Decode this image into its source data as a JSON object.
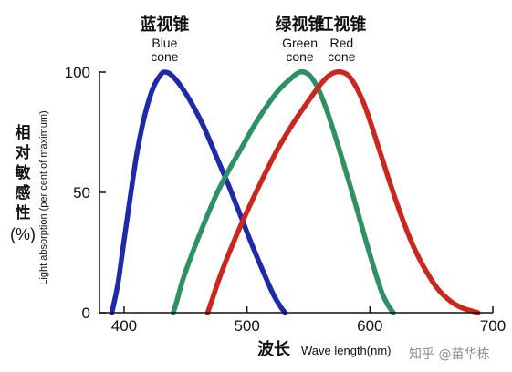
{
  "chart_data": {
    "type": "line",
    "xlabel_cn": "波长",
    "xlabel_en": "Wave length(nm)",
    "ylabel_cn": [
      "相",
      "对",
      "敏",
      "感",
      "性"
    ],
    "ylabel_unit": "(%)",
    "ylabel_en": "Light absorption (per cent of maximum)",
    "xlim": [
      380,
      700
    ],
    "ylim": [
      0,
      100
    ],
    "x_ticks": [
      "400",
      "500",
      "600",
      "700"
    ],
    "y_ticks": [
      "0",
      "50",
      "100"
    ],
    "series": [
      {
        "name_cn": "蓝视锥",
        "name_en": [
          "Blue",
          "cone"
        ],
        "color": "#1e2aa6",
        "peak": 433,
        "points": [
          [
            390,
            0
          ],
          [
            395,
            12
          ],
          [
            400,
            30
          ],
          [
            405,
            48
          ],
          [
            410,
            65
          ],
          [
            415,
            78
          ],
          [
            420,
            88
          ],
          [
            425,
            95
          ],
          [
            430,
            99
          ],
          [
            433,
            100
          ],
          [
            438,
            99
          ],
          [
            445,
            95
          ],
          [
            455,
            87
          ],
          [
            465,
            77
          ],
          [
            475,
            65
          ],
          [
            485,
            53
          ],
          [
            495,
            40
          ],
          [
            505,
            27
          ],
          [
            515,
            15
          ],
          [
            522,
            7
          ],
          [
            528,
            2
          ],
          [
            531,
            0
          ]
        ]
      },
      {
        "name_cn": "绿视锥",
        "name_en": [
          "Green",
          "cone"
        ],
        "color": "#2f9063",
        "peak": 543,
        "points": [
          [
            440,
            0
          ],
          [
            443,
            5
          ],
          [
            448,
            14
          ],
          [
            455,
            24
          ],
          [
            465,
            37
          ],
          [
            475,
            49
          ],
          [
            485,
            59
          ],
          [
            495,
            68
          ],
          [
            505,
            77
          ],
          [
            515,
            85
          ],
          [
            525,
            92
          ],
          [
            535,
            97
          ],
          [
            543,
            100
          ],
          [
            550,
            99
          ],
          [
            557,
            94
          ],
          [
            565,
            84
          ],
          [
            575,
            68
          ],
          [
            585,
            51
          ],
          [
            595,
            33
          ],
          [
            603,
            19
          ],
          [
            610,
            8
          ],
          [
            615,
            3
          ],
          [
            619,
            0
          ]
        ]
      },
      {
        "name_cn": "红视锥",
        "name_en": [
          "Red",
          "cone"
        ],
        "color": "#c8281e",
        "peak": 577,
        "points": [
          [
            468,
            0
          ],
          [
            472,
            6
          ],
          [
            478,
            15
          ],
          [
            488,
            28
          ],
          [
            500,
            42
          ],
          [
            512,
            55
          ],
          [
            525,
            68
          ],
          [
            538,
            79
          ],
          [
            550,
            88
          ],
          [
            560,
            95
          ],
          [
            568,
            99
          ],
          [
            577,
            100
          ],
          [
            585,
            97
          ],
          [
            595,
            87
          ],
          [
            605,
            72
          ],
          [
            615,
            56
          ],
          [
            625,
            41
          ],
          [
            635,
            28
          ],
          [
            645,
            18
          ],
          [
            655,
            10
          ],
          [
            665,
            5
          ],
          [
            675,
            2
          ],
          [
            688,
            0
          ]
        ]
      }
    ],
    "watermark": "知乎 @苗华栋"
  }
}
